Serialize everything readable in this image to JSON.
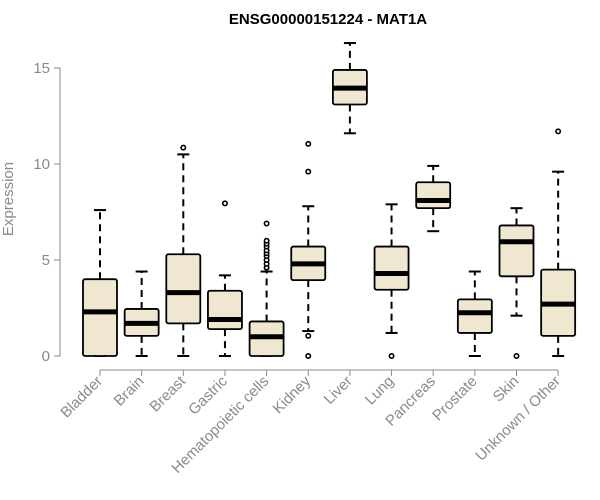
{
  "chart_data": {
    "type": "boxplot",
    "title": "ENSG00000151224 - MAT1A",
    "xlabel": "",
    "ylabel": "Expression",
    "ylim": [
      0,
      16.3
    ],
    "yticks": [
      0,
      5,
      10,
      15
    ],
    "categories": [
      "Bladder",
      "Brain",
      "Breast",
      "Gastric",
      "Hematopoietic cells",
      "Kidney",
      "Liver",
      "Lung",
      "Pancreas",
      "Prostate",
      "Skin",
      "Unknown / Other"
    ],
    "boxes": [
      {
        "name": "Bladder",
        "min": 0,
        "q1": 0,
        "median": 2.3,
        "q3": 4.0,
        "max": 7.6,
        "outliers": []
      },
      {
        "name": "Brain",
        "min": 0,
        "q1": 1.05,
        "median": 1.7,
        "q3": 2.45,
        "max": 4.4,
        "outliers": []
      },
      {
        "name": "Breast",
        "min": 0,
        "q1": 1.7,
        "median": 3.3,
        "q3": 5.3,
        "max": 10.5,
        "outliers": [
          10.85
        ]
      },
      {
        "name": "Gastric",
        "min": 0,
        "q1": 1.4,
        "median": 1.9,
        "q3": 3.4,
        "max": 4.2,
        "outliers": [
          7.95
        ]
      },
      {
        "name": "Hematopoietic cells",
        "min": 0,
        "q1": 0,
        "median": 1.0,
        "q3": 1.8,
        "max": 4.4,
        "outliers": [
          4.6,
          4.8,
          5.0,
          5.2,
          5.35,
          5.5,
          5.7,
          5.85,
          6.0,
          6.9
        ]
      },
      {
        "name": "Kidney",
        "min": 1.3,
        "q1": 3.95,
        "median": 4.8,
        "q3": 5.7,
        "max": 7.8,
        "outliers": [
          0,
          1.05,
          9.6,
          11.05
        ]
      },
      {
        "name": "Liver",
        "min": 11.6,
        "q1": 13.1,
        "median": 13.95,
        "q3": 14.9,
        "max": 16.3,
        "outliers": []
      },
      {
        "name": "Lung",
        "min": 1.2,
        "q1": 3.45,
        "median": 4.3,
        "q3": 5.7,
        "max": 7.9,
        "outliers": [
          0
        ]
      },
      {
        "name": "Pancreas",
        "min": 6.5,
        "q1": 7.7,
        "median": 8.1,
        "q3": 9.05,
        "max": 9.9,
        "outliers": []
      },
      {
        "name": "Prostate",
        "min": 0,
        "q1": 1.2,
        "median": 2.25,
        "q3": 2.95,
        "max": 4.4,
        "outliers": []
      },
      {
        "name": "Skin",
        "min": 2.1,
        "q1": 4.15,
        "median": 5.95,
        "q3": 6.8,
        "max": 7.7,
        "outliers": [
          0
        ]
      },
      {
        "name": "Unknown / Other",
        "min": 0,
        "q1": 1.05,
        "median": 2.7,
        "q3": 4.5,
        "max": 9.6,
        "outliers": [
          11.7
        ]
      }
    ],
    "colors": {
      "box_fill": "#efe7d0",
      "box_stroke": "#000000",
      "median": "#000000",
      "axis": "#8a8a8a"
    }
  }
}
